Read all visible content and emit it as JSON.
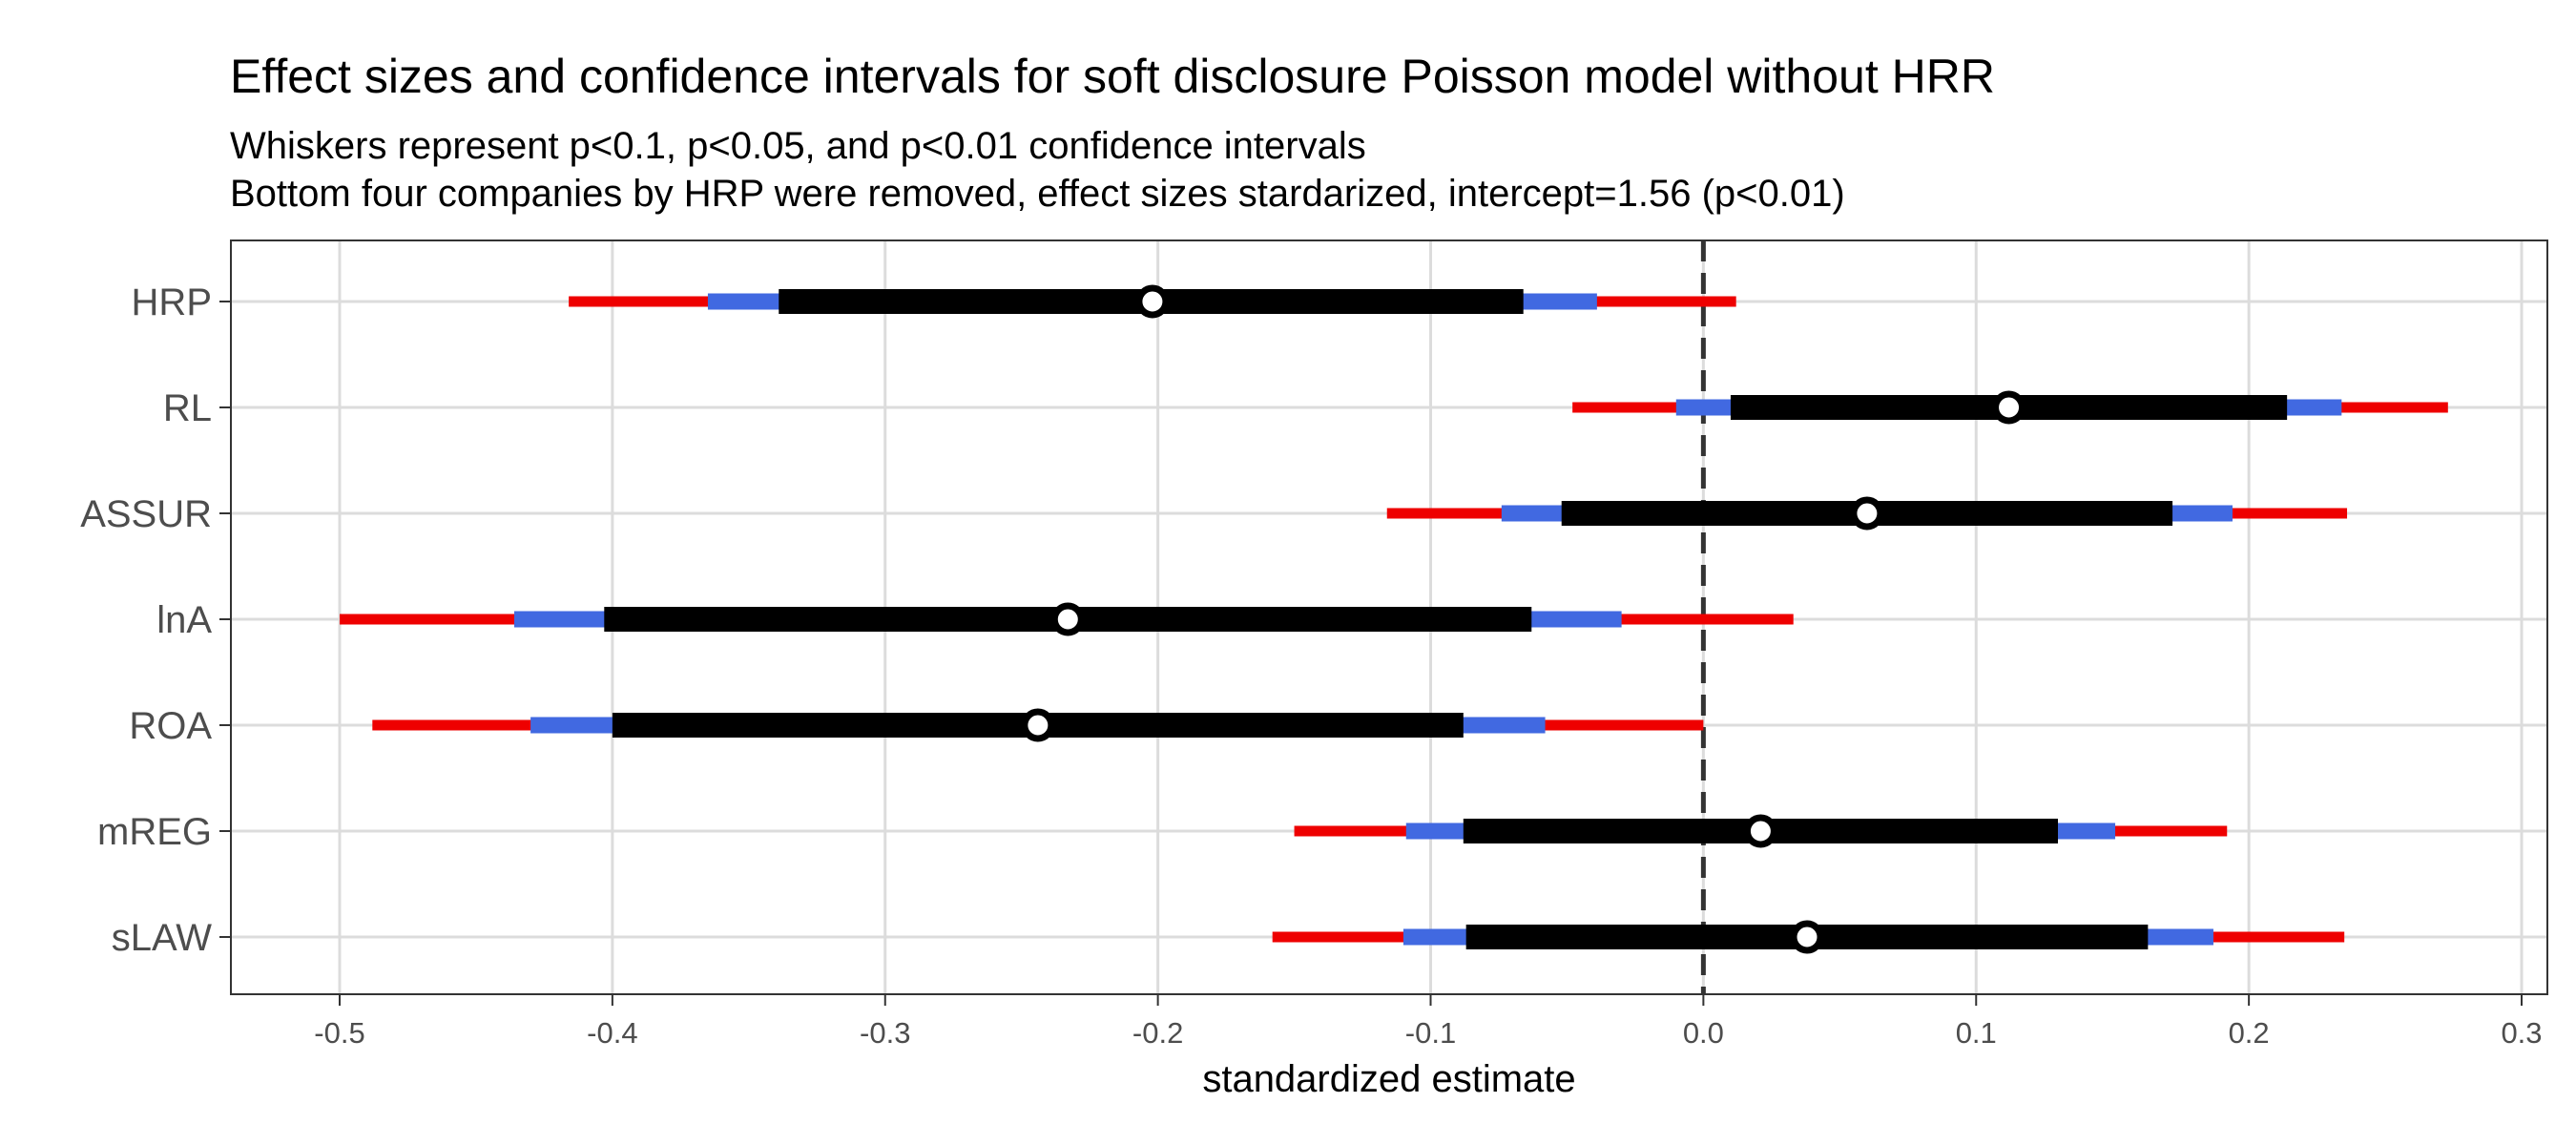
{
  "chart_data": {
    "type": "forest",
    "title": "Effect sizes and confidence intervals for soft disclosure Poisson model without HRR",
    "subtitle_lines": [
      "Whiskers represent p<0.1, p<0.05, and p<0.01 confidence intervals",
      "Bottom four companies by HRP were removed, effect sizes stardarized, intercept=1.56 (p<0.01)"
    ],
    "xlabel": "standardized estimate",
    "ylabel": "",
    "xlim": [
      -0.54,
      0.31
    ],
    "x_ticks": [
      -0.5,
      -0.4,
      -0.3,
      -0.2,
      -0.1,
      0.0,
      0.1,
      0.2,
      0.3
    ],
    "x_tick_labels": [
      "-0.5",
      "-0.4",
      "-0.3",
      "-0.2",
      "-0.1",
      "0.0",
      "0.1",
      "0.2",
      "0.3"
    ],
    "reference_line": 0.0,
    "grid": true,
    "legend": "none",
    "colors": {
      "ci_outer": "#ee0000",
      "ci_middle": "#4169e1",
      "ci_inner": "#000000",
      "point_fill": "#ffffff",
      "point_stroke": "#000000",
      "grid": "#dcdcdc",
      "reference_line": "#333333"
    },
    "terms": [
      {
        "label": "HRP",
        "estimate": -0.202,
        "ci90": [
          -0.339,
          -0.066
        ],
        "ci95": [
          -0.365,
          -0.039
        ],
        "ci99": [
          -0.416,
          0.012
        ]
      },
      {
        "label": "RL",
        "estimate": 0.112,
        "ci90": [
          0.01,
          0.214
        ],
        "ci95": [
          -0.01,
          0.234
        ],
        "ci99": [
          -0.048,
          0.273
        ]
      },
      {
        "label": "ASSUR",
        "estimate": 0.06,
        "ci90": [
          -0.052,
          0.172
        ],
        "ci95": [
          -0.074,
          0.194
        ],
        "ci99": [
          -0.116,
          0.236
        ]
      },
      {
        "label": "lnA",
        "estimate": -0.233,
        "ci90": [
          -0.403,
          -0.063
        ],
        "ci95": [
          -0.436,
          -0.03
        ],
        "ci99": [
          -0.5,
          0.033
        ]
      },
      {
        "label": "ROA",
        "estimate": -0.244,
        "ci90": [
          -0.4,
          -0.088
        ],
        "ci95": [
          -0.43,
          -0.058
        ],
        "ci99": [
          -0.488,
          0.0
        ]
      },
      {
        "label": "mREG",
        "estimate": 0.021,
        "ci90": [
          -0.088,
          0.13
        ],
        "ci95": [
          -0.109,
          0.151
        ],
        "ci99": [
          -0.15,
          0.192
        ]
      },
      {
        "label": "sLAW",
        "estimate": 0.038,
        "ci90": [
          -0.087,
          0.163
        ],
        "ci95": [
          -0.11,
          0.187
        ],
        "ci99": [
          -0.158,
          0.235
        ]
      }
    ]
  }
}
